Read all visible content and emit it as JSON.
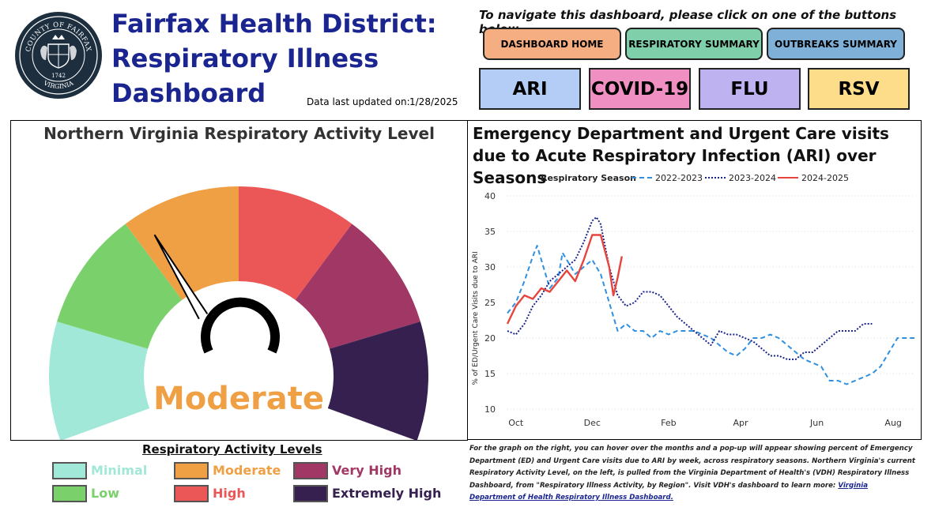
{
  "header": {
    "title": "Fairfax Health District: Respiratory Illness Dashboard",
    "updated_label": "Data last updated on:",
    "updated_value": "1/28/2025",
    "seal": {
      "top_text": "COUNTY OF FAIRFAX",
      "year": "1742",
      "bottom_text": "VIRGINIA"
    }
  },
  "nav": {
    "instructions": "To navigate this dashboard, please click on one of the buttons below",
    "buttons": [
      {
        "label": "DASHBOARD HOME",
        "color": "#f5ad82"
      },
      {
        "label": "RESPIRATORY SUMMARY",
        "color": "#7fcfaa"
      },
      {
        "label": "OUTBREAKS SUMMARY",
        "color": "#7fb0d8"
      }
    ],
    "disease_buttons": [
      {
        "label": "ARI",
        "color": "#b3cdf7"
      },
      {
        "label": "COVID-19",
        "color": "#ef8fc2"
      },
      {
        "label": "FLU",
        "color": "#bfb2f0"
      },
      {
        "label": "RSV",
        "color": "#fddd8a"
      }
    ]
  },
  "gauge": {
    "title": "Northern Virginia Respiratory Activity Level",
    "current_level": "Moderate",
    "current_level_color": "#f0a044",
    "needle_fraction": 0.36,
    "segment_colors": [
      "#a1e8d8",
      "#7ad06a",
      "#f0a044",
      "#eb5757",
      "#a13764",
      "#35204f"
    ]
  },
  "legend": {
    "title": "Respiratory Activity Levels",
    "items": [
      {
        "label": "Minimal",
        "color": "#a1e8d8"
      },
      {
        "label": "Low",
        "color": "#7ad06a"
      },
      {
        "label": "Moderate",
        "color": "#f0a044"
      },
      {
        "label": "High",
        "color": "#eb5757"
      },
      {
        "label": "Very High",
        "color": "#a13764"
      },
      {
        "label": "Extremely High",
        "color": "#35204f"
      }
    ]
  },
  "chart_data": {
    "type": "line",
    "title": "Emergency Department and Urgent Care visits due to Acute Respiratory Infection (ARI) over Seasons",
    "legend_title": "Respiratory Season",
    "legend_position": "top",
    "ylabel": "% of ED/Urgent Care Visits due to ARI",
    "xlabel": "",
    "ylim": [
      10,
      40
    ],
    "yticks": [
      10,
      15,
      20,
      25,
      30,
      35,
      40
    ],
    "xlim": [
      0,
      48
    ],
    "xticks": [
      {
        "x": 1,
        "label": "Oct"
      },
      {
        "x": 10,
        "label": "Dec"
      },
      {
        "x": 19,
        "label": "Feb"
      },
      {
        "x": 27.5,
        "label": "Apr"
      },
      {
        "x": 36.5,
        "label": "Jun"
      },
      {
        "x": 45.5,
        "label": "Aug"
      }
    ],
    "grid": true,
    "series": [
      {
        "name": "2022-2023",
        "color": "#2f8fe0",
        "dash": "dashed",
        "points": [
          [
            0,
            23.5
          ],
          [
            1,
            25
          ],
          [
            2,
            28
          ],
          [
            3,
            31.5
          ],
          [
            3.5,
            33
          ],
          [
            4,
            31
          ],
          [
            5,
            27
          ],
          [
            6,
            28.5
          ],
          [
            6.5,
            32
          ],
          [
            7,
            31
          ],
          [
            8,
            29
          ],
          [
            9,
            30
          ],
          [
            10,
            31
          ],
          [
            11,
            29
          ],
          [
            12,
            25
          ],
          [
            13,
            21
          ],
          [
            14,
            22
          ],
          [
            15,
            21
          ],
          [
            16,
            21
          ],
          [
            17,
            20
          ],
          [
            18,
            21
          ],
          [
            19,
            20.5
          ],
          [
            20,
            21
          ],
          [
            21,
            21
          ],
          [
            22,
            21
          ],
          [
            23,
            20.5
          ],
          [
            24,
            20
          ],
          [
            25,
            19
          ],
          [
            26,
            18
          ],
          [
            27,
            17.5
          ],
          [
            28,
            18.5
          ],
          [
            29,
            20
          ],
          [
            30,
            20
          ],
          [
            31,
            20.5
          ],
          [
            32,
            20
          ],
          [
            33,
            19
          ],
          [
            34,
            18
          ],
          [
            35,
            17
          ],
          [
            36,
            16.5
          ],
          [
            37,
            16
          ],
          [
            38,
            14
          ],
          [
            39,
            14
          ],
          [
            40,
            13.5
          ],
          [
            41,
            14
          ],
          [
            42,
            14.5
          ],
          [
            43,
            15
          ],
          [
            44,
            16
          ],
          [
            45,
            18
          ],
          [
            46,
            20
          ],
          [
            47,
            20
          ],
          [
            48,
            20
          ]
        ]
      },
      {
        "name": "2023-2024",
        "color": "#1b2590",
        "dash": "dotted",
        "points": [
          [
            0,
            21
          ],
          [
            1,
            20.5
          ],
          [
            2,
            22
          ],
          [
            3,
            24.5
          ],
          [
            4,
            26
          ],
          [
            5,
            28
          ],
          [
            6,
            29
          ],
          [
            7,
            30
          ],
          [
            8,
            31
          ],
          [
            9,
            33.5
          ],
          [
            10,
            36.5
          ],
          [
            10.5,
            37
          ],
          [
            11,
            36
          ],
          [
            12,
            30
          ],
          [
            13,
            26
          ],
          [
            14,
            24.5
          ],
          [
            15,
            25
          ],
          [
            16,
            26.5
          ],
          [
            17,
            26.5
          ],
          [
            18,
            26
          ],
          [
            19,
            24.5
          ],
          [
            20,
            23
          ],
          [
            21,
            22
          ],
          [
            22,
            21
          ],
          [
            23,
            20
          ],
          [
            24,
            19
          ],
          [
            25,
            21
          ],
          [
            26,
            20.5
          ],
          [
            27,
            20.5
          ],
          [
            28,
            20
          ],
          [
            29,
            19.5
          ],
          [
            30,
            18.5
          ],
          [
            31,
            17.5
          ],
          [
            32,
            17.5
          ],
          [
            33,
            17
          ],
          [
            34,
            17
          ],
          [
            35,
            18
          ],
          [
            36,
            18
          ],
          [
            37,
            19
          ],
          [
            38,
            20
          ],
          [
            39,
            21
          ],
          [
            40,
            21
          ],
          [
            41,
            21
          ],
          [
            42,
            22
          ],
          [
            43,
            22
          ]
        ]
      },
      {
        "name": "2024-2025",
        "color": "#e6453e",
        "dash": "solid",
        "points": [
          [
            0,
            22
          ],
          [
            1,
            24.5
          ],
          [
            2,
            26
          ],
          [
            3,
            25.5
          ],
          [
            4,
            27
          ],
          [
            5,
            26.5
          ],
          [
            6,
            28
          ],
          [
            7,
            29.5
          ],
          [
            8,
            28
          ],
          [
            9,
            31
          ],
          [
            10,
            34.5
          ],
          [
            11,
            34.5
          ],
          [
            12,
            30
          ],
          [
            12.5,
            26
          ],
          [
            13,
            28.5
          ],
          [
            13.5,
            31.5
          ]
        ]
      }
    ]
  },
  "footnote": {
    "text": "For the graph on the right, you can hover over the months and a pop-up will appear showing percent of Emergency Department (ED) and Urgent Care visits due to ARI by week, across respiratory seasons. Northern Virginia's current Respiratory Activity Level, on the left, is pulled from the Virginia Department of Health's (VDH) Respiratory Illness Dashboard, from \"Respiratory Illness Activity, by Region\". Visit VDH's dashboard to learn more: ",
    "link_text": "Virginia Department of Health Respiratory Illness Dashboard."
  }
}
